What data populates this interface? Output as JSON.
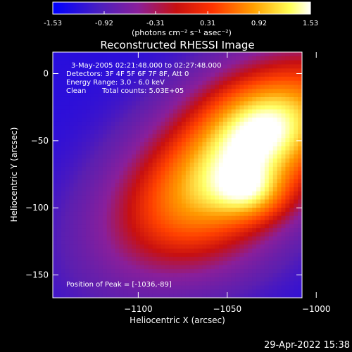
{
  "colorbar": {
    "ticks": [
      "-1.53",
      "-0.92",
      "-0.31",
      "0.31",
      "0.92",
      "1.53"
    ],
    "tick_values": [
      -1.53,
      -0.92,
      -0.31,
      0.31,
      0.92,
      1.53
    ],
    "units": "(photons cm⁻² s⁻¹ asec⁻²)"
  },
  "chart_data": {
    "type": "heatmap",
    "title": "Reconstructed RHESSI Image",
    "xlabel": "Heliocentric X (arcsec)",
    "ylabel": "Heliocentric Y (arcsec)",
    "xlim": [
      -1148,
      -1008
    ],
    "ylim": [
      -167,
      16
    ],
    "xticks": [
      -1100,
      -1050,
      -1000
    ],
    "xtick_labels": [
      "−1100",
      "−1050",
      "−1000"
    ],
    "yticks": [
      0,
      -50,
      -100,
      -150
    ],
    "ytick_labels": [
      "0",
      "−50",
      "−100",
      "−150"
    ],
    "value_range": [
      -1.53,
      1.53
    ],
    "peak": [
      -1036,
      -89
    ],
    "colormap": [
      "#0000ff",
      "#5c1fb0",
      "#8a1f9a",
      "#c81010",
      "#ff4000",
      "#ff9900",
      "#ffff66",
      "#ffffff"
    ],
    "annotations": [
      "3-May-2005 02:21:48.000 to 02:27:48.000",
      "Detectors: 3F 4F 5F 6F 7F 8F, Att 0",
      "Energy Range: 3.0 - 6.0 keV",
      "Clean",
      "Total counts: 5.03E+05",
      "Position of Peak = [-1036,-89]"
    ]
  },
  "footer_date": "29-Apr-2022 15:38"
}
